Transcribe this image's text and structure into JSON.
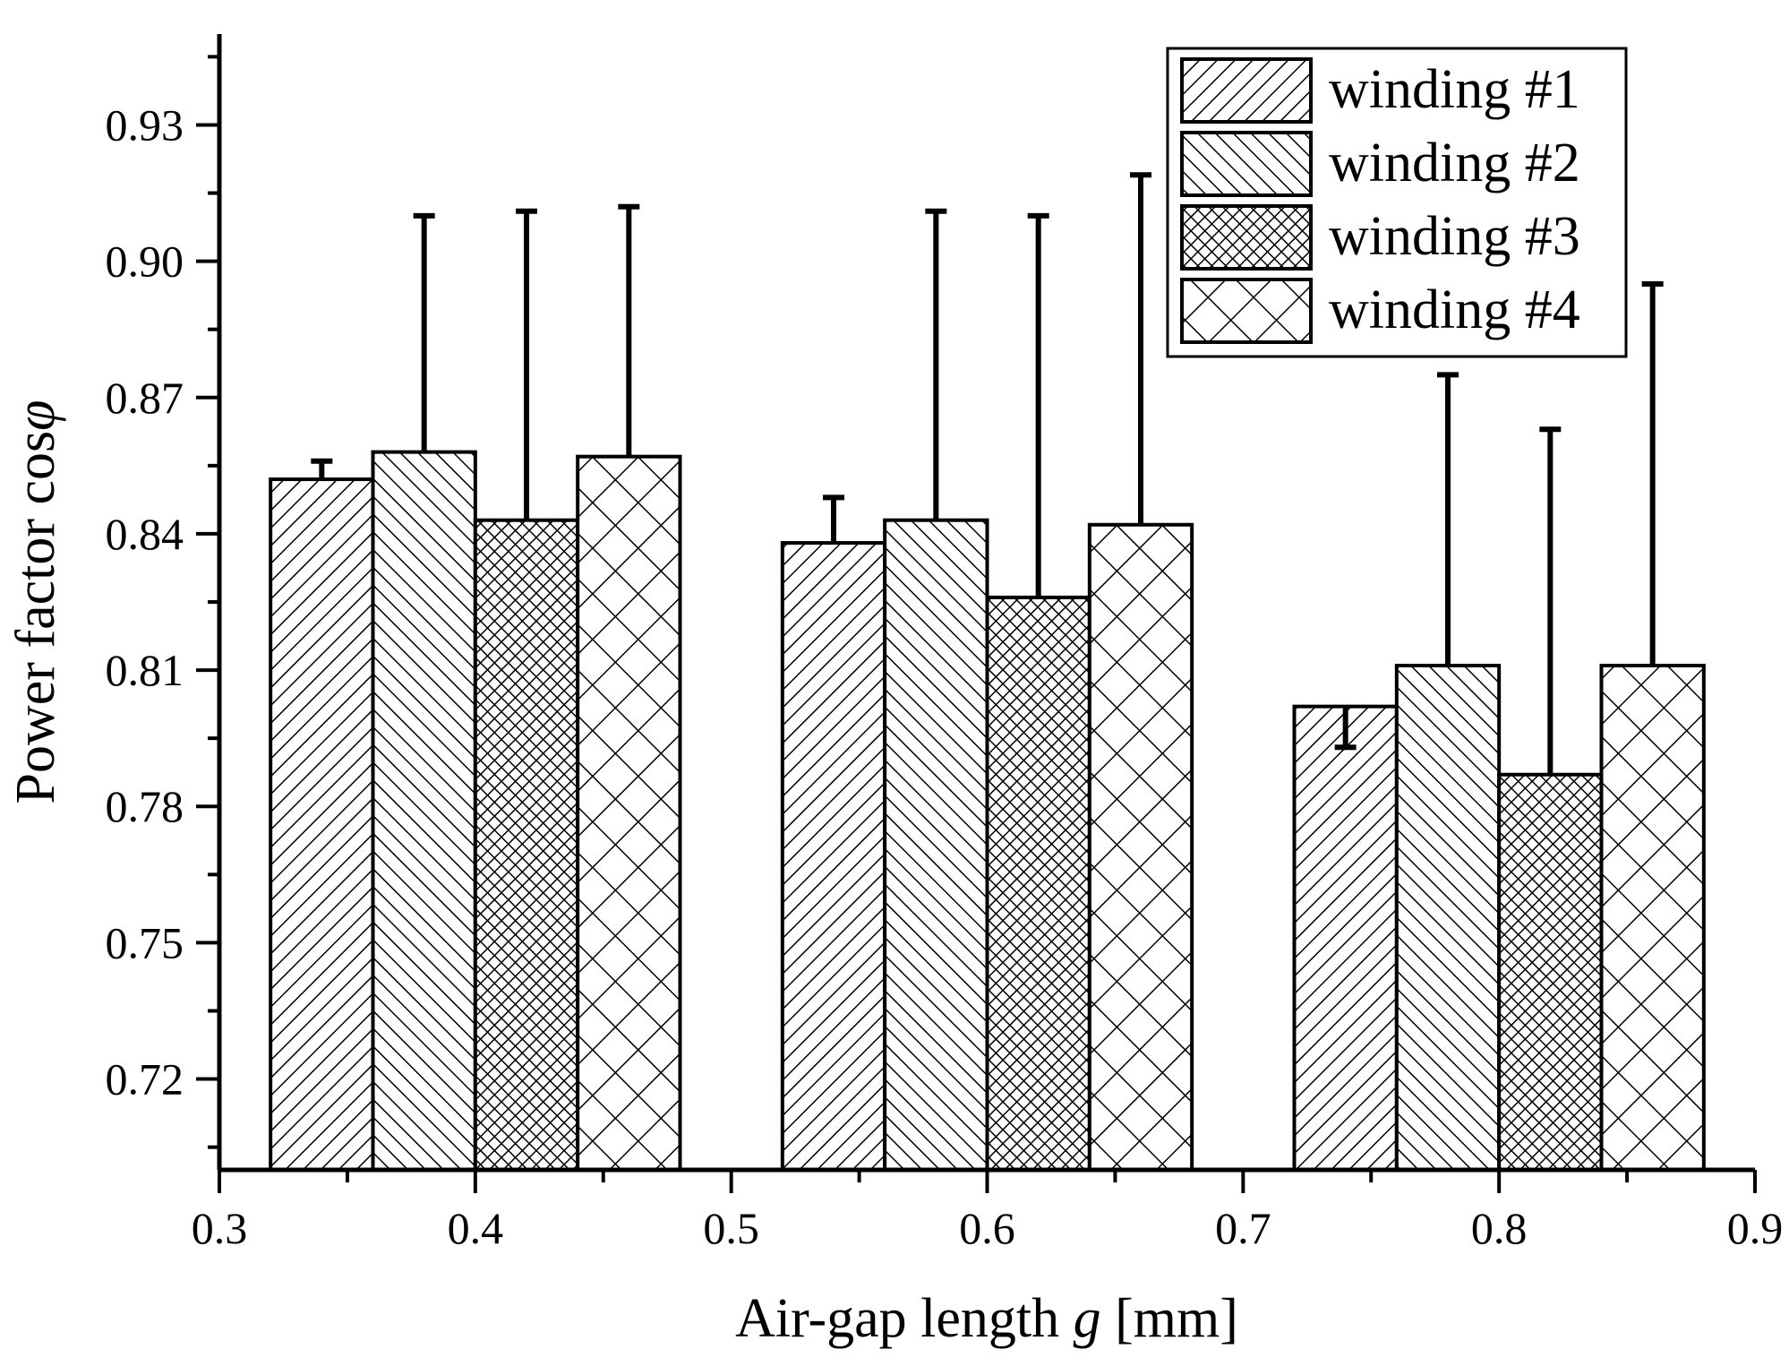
{
  "chart_data": {
    "type": "bar",
    "xlabel": "Air-gap length",
    "xlabel_var": "g",
    "xlabel_unit": "[mm]",
    "ylabel": "Power factor cos",
    "ylabel_var": "φ",
    "xlim": [
      0.3,
      0.9
    ],
    "ylim": [
      0.7,
      0.95
    ],
    "x_ticks": [
      0.3,
      0.4,
      0.5,
      0.6,
      0.7,
      0.8,
      0.9
    ],
    "x_tick_labels": [
      "0.3",
      "0.4",
      "0.5",
      "0.6",
      "0.7",
      "0.8",
      "0.9"
    ],
    "y_ticks": [
      0.72,
      0.75,
      0.78,
      0.81,
      0.84,
      0.87,
      0.9,
      0.93
    ],
    "y_tick_labels": [
      "0.72",
      "0.75",
      "0.78",
      "0.81",
      "0.84",
      "0.87",
      "0.90",
      "0.93"
    ],
    "groups": [
      0.4,
      0.6,
      0.8
    ],
    "group_width": 0.16,
    "legend_position": "top-right",
    "series": [
      {
        "name": "winding #1",
        "pattern": "diag-fine",
        "values": [
          0.852,
          0.838,
          0.802
        ],
        "error_ends": [
          0.856,
          0.848,
          0.793
        ]
      },
      {
        "name": "winding #2",
        "pattern": "back-diag",
        "values": [
          0.858,
          0.843,
          0.811
        ],
        "error_ends": [
          0.91,
          0.911,
          0.875
        ]
      },
      {
        "name": "winding #3",
        "pattern": "cross-fine",
        "values": [
          0.843,
          0.826,
          0.787
        ],
        "error_ends": [
          0.911,
          0.91,
          0.863
        ]
      },
      {
        "name": "winding #4",
        "pattern": "cross-coarse",
        "values": [
          0.857,
          0.842,
          0.811
        ],
        "error_ends": [
          0.912,
          0.919,
          0.895
        ]
      }
    ]
  }
}
